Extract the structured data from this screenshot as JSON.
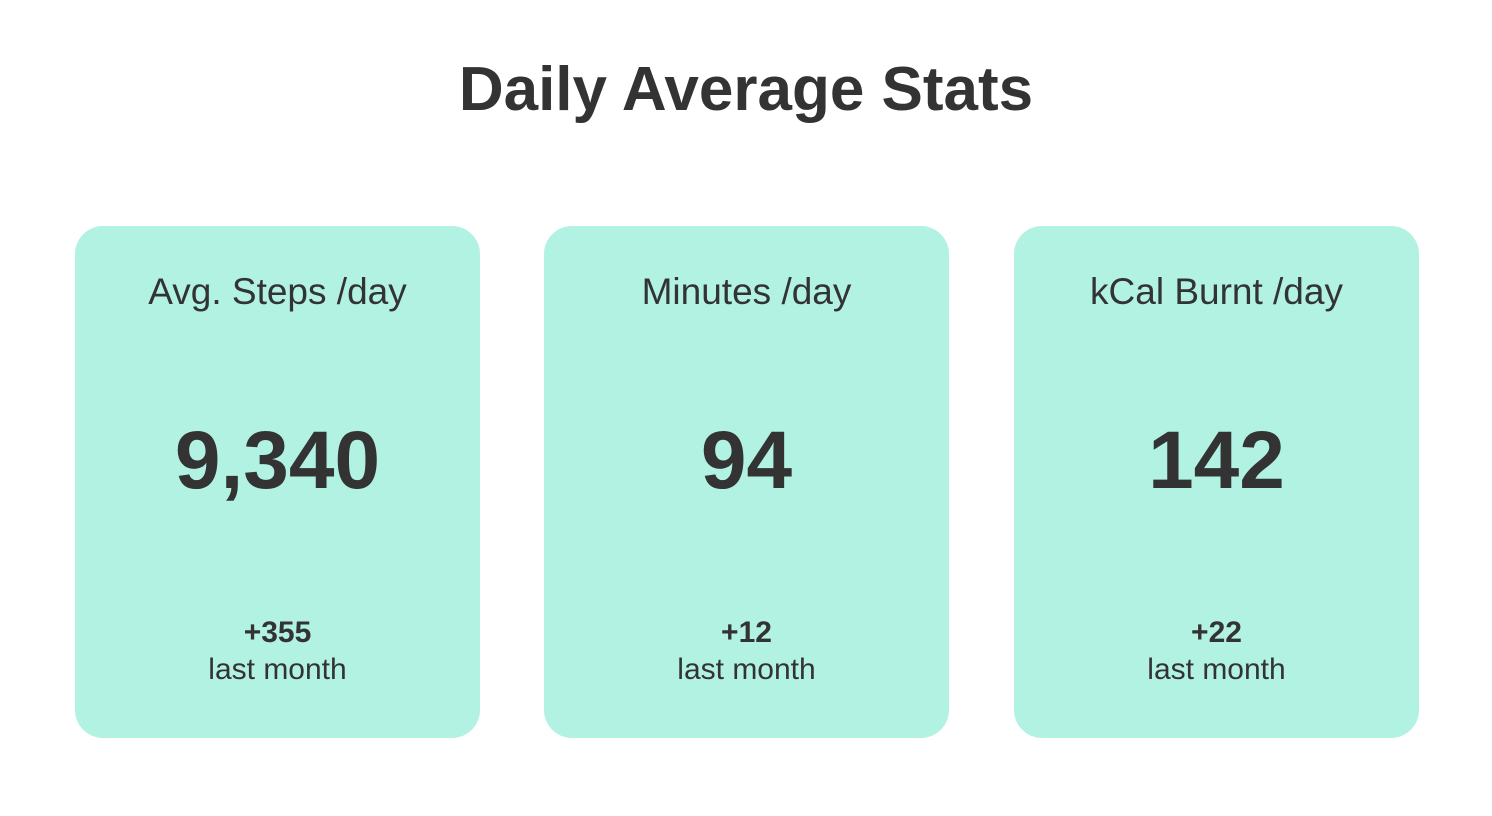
{
  "title": "Daily Average Stats",
  "colors": {
    "card_background": "#b1f2e3",
    "text": "#333333",
    "page_background": "#ffffff"
  },
  "cards": [
    {
      "label": "Avg. Steps /day",
      "value": "9,340",
      "change": "+355",
      "period": "last month"
    },
    {
      "label": "Minutes /day",
      "value": "94",
      "change": "+12",
      "period": "last month"
    },
    {
      "label": "kCal Burnt /day",
      "value": "142",
      "change": "+22",
      "period": "last month"
    }
  ]
}
